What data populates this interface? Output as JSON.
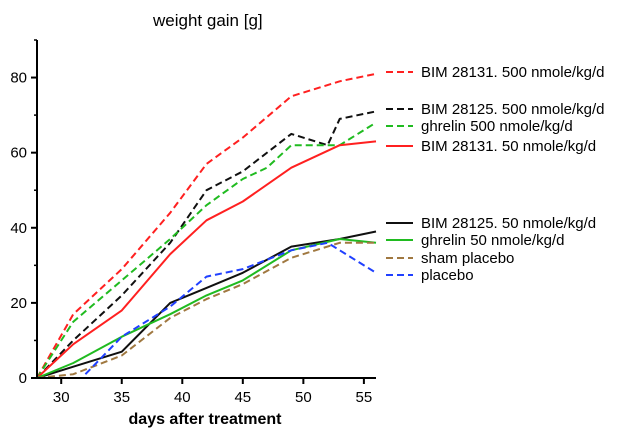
{
  "chart_data": {
    "type": "line",
    "title": "weight gain [g]",
    "xlabel": "days after treatment",
    "ylabel": "",
    "xlim": [
      28,
      56
    ],
    "ylim": [
      0,
      90
    ],
    "xticks": [
      30,
      35,
      40,
      45,
      50,
      55
    ],
    "yticks": [
      0,
      20,
      40,
      60,
      80
    ],
    "grid": false,
    "legend_position": "right",
    "series": [
      {
        "name": "BIM 28131. 500 nmole/kg/d",
        "color": "#ff2020",
        "dash": "dashed",
        "x": [
          28,
          31,
          35,
          39,
          42,
          45,
          49,
          53,
          56
        ],
        "y": [
          0,
          17,
          29,
          44,
          57,
          64,
          75,
          79,
          81
        ]
      },
      {
        "name": "BIM 28125. 500 nmole/kg/d",
        "color": "#101010",
        "dash": "dashed",
        "x": [
          28,
          31,
          35,
          39,
          42,
          45,
          49,
          52,
          53,
          56
        ],
        "y": [
          0,
          10,
          22,
          36,
          50,
          55,
          65,
          62,
          69,
          71
        ]
      },
      {
        "name": "ghrelin 500 nmole/kg/d",
        "color": "#20bb20",
        "dash": "dashed",
        "x": [
          28,
          31,
          35,
          39,
          42,
          45,
          47,
          49,
          53,
          56
        ],
        "y": [
          0,
          15,
          26,
          37,
          46,
          53,
          56,
          62,
          62,
          68
        ]
      },
      {
        "name": "BIM 28131. 50 nmole/kg/d",
        "color": "#ff2020",
        "dash": "solid",
        "x": [
          28,
          31,
          35,
          39,
          42,
          45,
          49,
          53,
          56
        ],
        "y": [
          0,
          9,
          18,
          33,
          42,
          47,
          56,
          62,
          63
        ]
      },
      {
        "name": "BIM 28125. 50 nmole/kg/d",
        "color": "#101010",
        "dash": "solid",
        "x": [
          28,
          31,
          35,
          39,
          42,
          45,
          49,
          53,
          56
        ],
        "y": [
          0,
          3,
          7,
          20,
          24,
          28,
          35,
          37,
          39
        ]
      },
      {
        "name": "ghrelin 50 nmole/kg/d",
        "color": "#20bb20",
        "dash": "solid",
        "x": [
          28,
          31,
          35,
          39,
          42,
          45,
          49,
          53,
          56
        ],
        "y": [
          0,
          4,
          11,
          17,
          22,
          26,
          34,
          37,
          36
        ]
      },
      {
        "name": "sham placebo",
        "color": "#a07840",
        "dash": "dashed",
        "x": [
          28,
          31,
          35,
          39,
          42,
          45,
          49,
          53,
          56
        ],
        "y": [
          0,
          1,
          6,
          16,
          21,
          25,
          32,
          36,
          36
        ]
      },
      {
        "name": "placebo",
        "color": "#2040ff",
        "dash": "dashed",
        "x": [
          32,
          35,
          39,
          42,
          45,
          49,
          52,
          56
        ],
        "y": [
          1,
          11,
          19,
          27,
          29,
          34,
          36,
          28
        ]
      }
    ]
  }
}
